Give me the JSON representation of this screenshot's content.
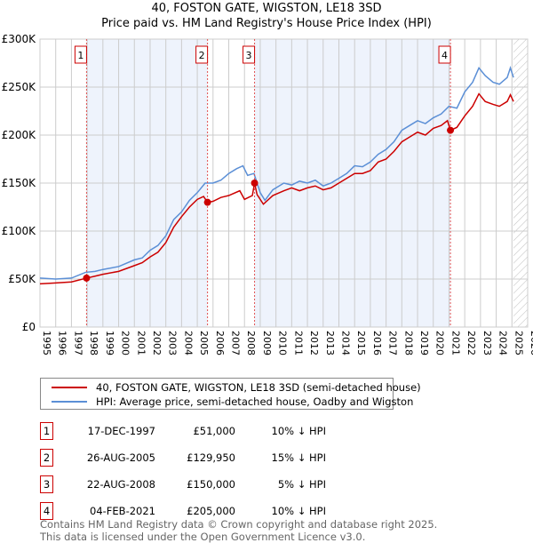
{
  "title": "40, FOSTON GATE, WIGSTON, LE18 3SD",
  "subtitle": "Price paid vs. HM Land Registry's House Price Index (HPI)",
  "chart_data": {
    "type": "line",
    "title": "40, FOSTON GATE, WIGSTON, LE18 3SD",
    "subtitle": "Price paid vs. HM Land Registry's House Price Index (HPI)",
    "xlim": [
      1995,
      2026
    ],
    "ylim": [
      0,
      300000
    ],
    "yticks": [
      0,
      50000,
      100000,
      150000,
      200000,
      250000,
      300000
    ],
    "ytick_labels": [
      "£0",
      "£50K",
      "£100K",
      "£150K",
      "£200K",
      "£250K",
      "£300K"
    ],
    "xticks": [
      1995,
      1996,
      1997,
      1998,
      1999,
      2000,
      2001,
      2002,
      2003,
      2004,
      2005,
      2006,
      2007,
      2008,
      2009,
      2010,
      2011,
      2012,
      2013,
      2014,
      2015,
      2016,
      2017,
      2018,
      2019,
      2020,
      2021,
      2022,
      2023,
      2024,
      2025,
      2026
    ],
    "grid": true,
    "colors": {
      "property": "#cc0000",
      "hpi": "#5b8fd6",
      "shade": "#eef3fc"
    },
    "forecast_start": 2025.1,
    "series": [
      {
        "name": "40, FOSTON GATE, WIGSTON, LE18 3SD (semi-detached house)",
        "color": "#cc0000",
        "points": [
          [
            1995,
            45
          ],
          [
            1996,
            46
          ],
          [
            1997,
            47
          ],
          [
            1997.96,
            51
          ],
          [
            1998.5,
            53
          ],
          [
            1999,
            55
          ],
          [
            2000,
            58
          ],
          [
            2001,
            64
          ],
          [
            2001.5,
            67
          ],
          [
            2002,
            73
          ],
          [
            2002.5,
            78
          ],
          [
            2003,
            88
          ],
          [
            2003.5,
            104
          ],
          [
            2004,
            115
          ],
          [
            2004.5,
            125
          ],
          [
            2005,
            133
          ],
          [
            2005.4,
            136
          ],
          [
            2005.65,
            129.95
          ],
          [
            2006,
            131
          ],
          [
            2006.5,
            135
          ],
          [
            2007,
            137
          ],
          [
            2007.7,
            142
          ],
          [
            2008,
            133
          ],
          [
            2008.5,
            137
          ],
          [
            2008.64,
            150
          ],
          [
            2008.8,
            138
          ],
          [
            2009.2,
            128
          ],
          [
            2009.8,
            137
          ],
          [
            2010.5,
            142
          ],
          [
            2011,
            145
          ],
          [
            2011.5,
            142
          ],
          [
            2012,
            145
          ],
          [
            2012.5,
            147
          ],
          [
            2013,
            143
          ],
          [
            2013.5,
            145
          ],
          [
            2014,
            150
          ],
          [
            2014.5,
            155
          ],
          [
            2015,
            160
          ],
          [
            2015.5,
            160
          ],
          [
            2016,
            163
          ],
          [
            2016.5,
            172
          ],
          [
            2017,
            175
          ],
          [
            2017.5,
            183
          ],
          [
            2018,
            193
          ],
          [
            2018.5,
            198
          ],
          [
            2019,
            203
          ],
          [
            2019.5,
            200
          ],
          [
            2020,
            207
          ],
          [
            2020.5,
            210
          ],
          [
            2020.9,
            215
          ],
          [
            2021.09,
            205
          ],
          [
            2021.5,
            208
          ],
          [
            2022,
            220
          ],
          [
            2022.5,
            230
          ],
          [
            2022.9,
            243
          ],
          [
            2023.3,
            235
          ],
          [
            2023.8,
            232
          ],
          [
            2024.2,
            230
          ],
          [
            2024.7,
            235
          ],
          [
            2024.9,
            242
          ],
          [
            2025.1,
            235
          ]
        ]
      },
      {
        "name": "HPI: Average price, semi-detached house, Oadby and Wigston",
        "color": "#5b8fd6",
        "points": [
          [
            1995,
            51
          ],
          [
            1996,
            50
          ],
          [
            1997,
            51
          ],
          [
            1997.9,
            57
          ],
          [
            1998.5,
            58
          ],
          [
            1999,
            60
          ],
          [
            2000,
            63
          ],
          [
            2001,
            70
          ],
          [
            2001.5,
            72
          ],
          [
            2002,
            80
          ],
          [
            2002.5,
            85
          ],
          [
            2003,
            95
          ],
          [
            2003.5,
            112
          ],
          [
            2004,
            120
          ],
          [
            2004.5,
            132
          ],
          [
            2005,
            140
          ],
          [
            2005.5,
            150
          ],
          [
            2006,
            150
          ],
          [
            2006.5,
            153
          ],
          [
            2007,
            160
          ],
          [
            2007.5,
            165
          ],
          [
            2007.9,
            168
          ],
          [
            2008.2,
            158
          ],
          [
            2008.6,
            160
          ],
          [
            2009,
            140
          ],
          [
            2009.3,
            132
          ],
          [
            2009.8,
            143
          ],
          [
            2010.5,
            150
          ],
          [
            2011,
            148
          ],
          [
            2011.5,
            152
          ],
          [
            2012,
            150
          ],
          [
            2012.5,
            153
          ],
          [
            2013,
            147
          ],
          [
            2013.5,
            150
          ],
          [
            2014,
            155
          ],
          [
            2014.5,
            160
          ],
          [
            2015,
            168
          ],
          [
            2015.5,
            167
          ],
          [
            2016,
            172
          ],
          [
            2016.5,
            180
          ],
          [
            2017,
            185
          ],
          [
            2017.5,
            193
          ],
          [
            2018,
            205
          ],
          [
            2018.5,
            210
          ],
          [
            2019,
            215
          ],
          [
            2019.5,
            212
          ],
          [
            2020,
            218
          ],
          [
            2020.5,
            222
          ],
          [
            2021,
            230
          ],
          [
            2021.5,
            228
          ],
          [
            2022,
            245
          ],
          [
            2022.5,
            255
          ],
          [
            2022.9,
            270
          ],
          [
            2023.3,
            262
          ],
          [
            2023.8,
            255
          ],
          [
            2024.2,
            253
          ],
          [
            2024.7,
            260
          ],
          [
            2024.9,
            270
          ],
          [
            2025.1,
            260
          ]
        ]
      }
    ],
    "y_unit": "£ thousands in points",
    "sales": [
      {
        "n": "1",
        "x": 1997.96,
        "date": "17-DEC-1997",
        "price": "£51,000",
        "value": 51,
        "hpi": "10% ↓ HPI"
      },
      {
        "n": "2",
        "x": 2005.65,
        "date": "26-AUG-2005",
        "price": "£129,950",
        "value": 129.95,
        "hpi": "15% ↓ HPI"
      },
      {
        "n": "3",
        "x": 2008.64,
        "date": "22-AUG-2008",
        "price": "£150,000",
        "value": 150,
        "hpi": "5% ↓ HPI"
      },
      {
        "n": "4",
        "x": 2021.09,
        "date": "04-FEB-2021",
        "price": "£205,000",
        "value": 205,
        "hpi": "10% ↓ HPI"
      }
    ]
  },
  "legend": {
    "property": "40, FOSTON GATE, WIGSTON, LE18 3SD (semi-detached house)",
    "hpi": "HPI: Average price, semi-detached house, Oadby and Wigston"
  },
  "footer": {
    "line1": "Contains HM Land Registry data © Crown copyright and database right 2025.",
    "line2": "This data is licensed under the Open Government Licence v3.0."
  }
}
